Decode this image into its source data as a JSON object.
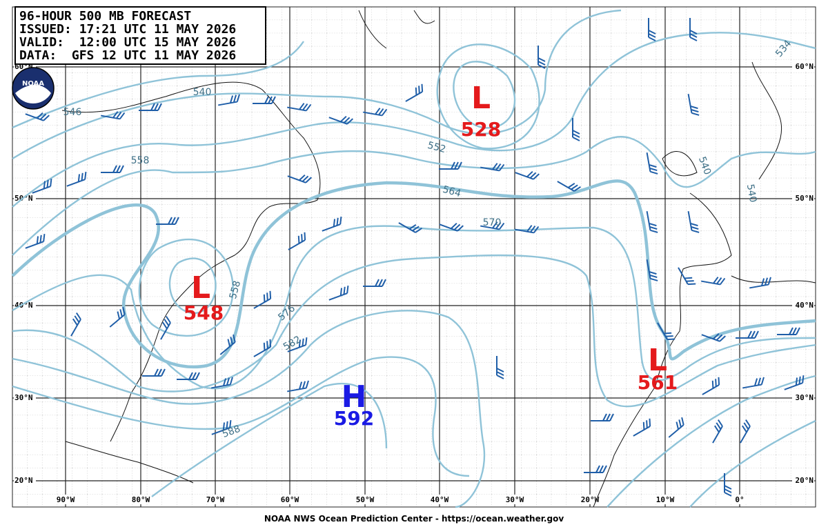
{
  "header": {
    "lines": [
      "96-HOUR 500 MB FORECAST",
      "ISSUED: 17:21 UTC 11 MAY 2026",
      "VALID:  12:00 UTC 15 MAY 2026",
      "DATA:  GFS 12 UTC 11 MAY 2026"
    ]
  },
  "logo_text": "NOAA",
  "lat_labels": [
    "60°N",
    "50°N",
    "40°N",
    "30°N",
    "20°N"
  ],
  "lon_labels": [
    "90°W",
    "80°W",
    "70°W",
    "60°W",
    "50°W",
    "40°W",
    "30°W",
    "20°W",
    "10°W",
    "0°"
  ],
  "contour_labels": [
    540,
    546,
    558,
    552,
    564,
    570,
    576,
    582,
    588,
    558,
    540,
    540,
    534
  ],
  "centers": [
    {
      "letter": "L",
      "value": 528
    },
    {
      "letter": "L",
      "value": 548
    },
    {
      "letter": "L",
      "value": 561
    },
    {
      "letter": "H",
      "value": 592
    }
  ],
  "footer": "NOAA NWS Ocean Prediction Center - https://ocean.weather.gov"
}
